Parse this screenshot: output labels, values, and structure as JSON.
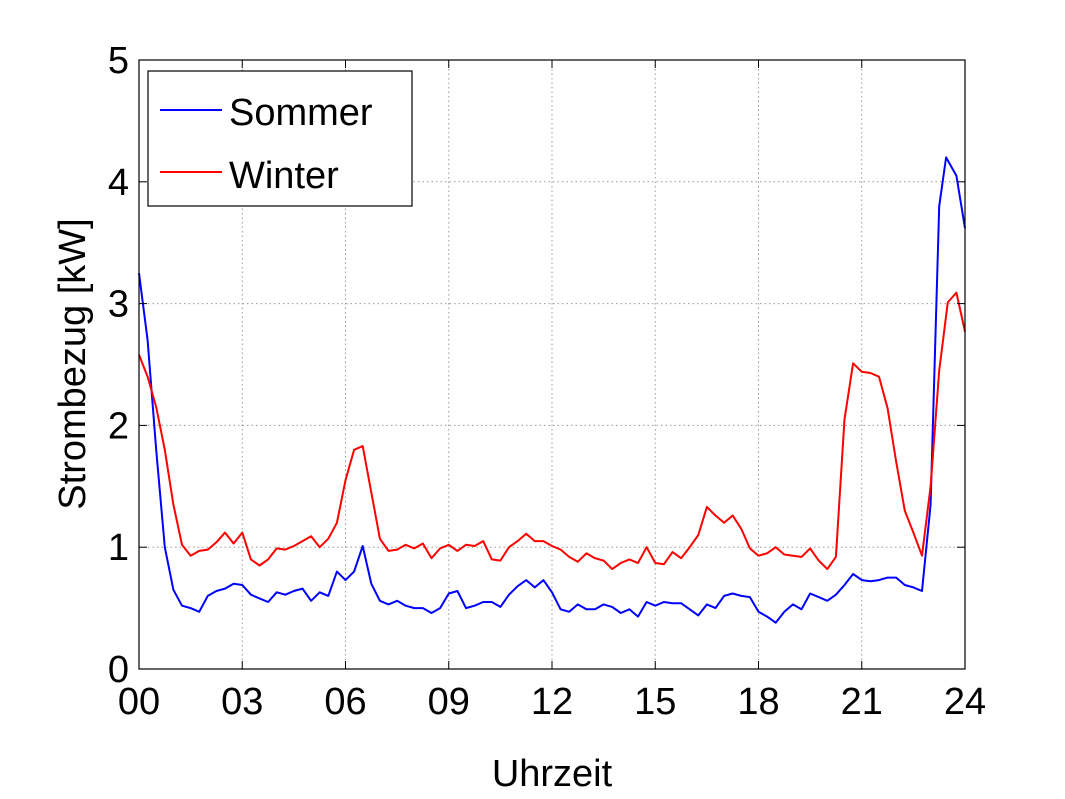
{
  "chart_data": {
    "type": "line",
    "xlabel": "Uhrzeit",
    "ylabel": "Strombezug [kW]",
    "xlim": [
      0,
      24
    ],
    "ylim": [
      0,
      5
    ],
    "x_ticks": [
      0,
      3,
      6,
      9,
      12,
      15,
      18,
      21,
      24
    ],
    "x_tick_labels": [
      "00",
      "03",
      "06",
      "09",
      "12",
      "15",
      "18",
      "21",
      "24"
    ],
    "y_ticks": [
      0,
      1,
      2,
      3,
      4,
      5
    ],
    "y_tick_labels": [
      "0",
      "1",
      "2",
      "3",
      "4",
      "5"
    ],
    "grid": true,
    "legend_position": "top-left",
    "series": [
      {
        "name": "Sommer",
        "color": "#0000ff",
        "points": [
          [
            0.0,
            3.25
          ],
          [
            0.25,
            2.7
          ],
          [
            0.5,
            1.8
          ],
          [
            0.75,
            1.0
          ],
          [
            1.0,
            0.65
          ],
          [
            1.25,
            0.52
          ],
          [
            1.5,
            0.5
          ],
          [
            1.75,
            0.47
          ],
          [
            2.0,
            0.6
          ],
          [
            2.25,
            0.64
          ],
          [
            2.5,
            0.66
          ],
          [
            2.75,
            0.7
          ],
          [
            3.0,
            0.69
          ],
          [
            3.25,
            0.61
          ],
          [
            3.5,
            0.58
          ],
          [
            3.75,
            0.55
          ],
          [
            4.0,
            0.63
          ],
          [
            4.25,
            0.61
          ],
          [
            4.5,
            0.64
          ],
          [
            4.75,
            0.66
          ],
          [
            5.0,
            0.56
          ],
          [
            5.25,
            0.63
          ],
          [
            5.5,
            0.6
          ],
          [
            5.75,
            0.8
          ],
          [
            6.0,
            0.73
          ],
          [
            6.25,
            0.8
          ],
          [
            6.5,
            1.01
          ],
          [
            6.75,
            0.7
          ],
          [
            7.0,
            0.56
          ],
          [
            7.25,
            0.53
          ],
          [
            7.5,
            0.56
          ],
          [
            7.75,
            0.52
          ],
          [
            8.0,
            0.5
          ],
          [
            8.25,
            0.5
          ],
          [
            8.5,
            0.46
          ],
          [
            8.75,
            0.5
          ],
          [
            9.0,
            0.62
          ],
          [
            9.25,
            0.64
          ],
          [
            9.5,
            0.5
          ],
          [
            9.75,
            0.52
          ],
          [
            10.0,
            0.55
          ],
          [
            10.25,
            0.55
          ],
          [
            10.5,
            0.51
          ],
          [
            10.75,
            0.61
          ],
          [
            11.0,
            0.68
          ],
          [
            11.25,
            0.73
          ],
          [
            11.5,
            0.67
          ],
          [
            11.75,
            0.73
          ],
          [
            12.0,
            0.63
          ],
          [
            12.25,
            0.49
          ],
          [
            12.5,
            0.47
          ],
          [
            12.75,
            0.53
          ],
          [
            13.0,
            0.49
          ],
          [
            13.25,
            0.49
          ],
          [
            13.5,
            0.53
          ],
          [
            13.75,
            0.51
          ],
          [
            14.0,
            0.46
          ],
          [
            14.25,
            0.49
          ],
          [
            14.5,
            0.43
          ],
          [
            14.75,
            0.55
          ],
          [
            15.0,
            0.52
          ],
          [
            15.25,
            0.55
          ],
          [
            15.5,
            0.54
          ],
          [
            15.75,
            0.54
          ],
          [
            16.0,
            0.49
          ],
          [
            16.25,
            0.44
          ],
          [
            16.5,
            0.53
          ],
          [
            16.75,
            0.5
          ],
          [
            17.0,
            0.6
          ],
          [
            17.25,
            0.62
          ],
          [
            17.5,
            0.6
          ],
          [
            17.75,
            0.59
          ],
          [
            18.0,
            0.47
          ],
          [
            18.25,
            0.43
          ],
          [
            18.5,
            0.38
          ],
          [
            18.75,
            0.47
          ],
          [
            19.0,
            0.53
          ],
          [
            19.25,
            0.49
          ],
          [
            19.5,
            0.62
          ],
          [
            19.75,
            0.59
          ],
          [
            20.0,
            0.56
          ],
          [
            20.25,
            0.61
          ],
          [
            20.5,
            0.69
          ],
          [
            20.75,
            0.78
          ],
          [
            21.0,
            0.73
          ],
          [
            21.25,
            0.72
          ],
          [
            21.5,
            0.73
          ],
          [
            21.75,
            0.75
          ],
          [
            22.0,
            0.75
          ],
          [
            22.25,
            0.69
          ],
          [
            22.5,
            0.67
          ],
          [
            22.75,
            0.64
          ],
          [
            23.0,
            1.35
          ],
          [
            23.25,
            3.8
          ],
          [
            23.45,
            4.2
          ],
          [
            23.75,
            4.05
          ],
          [
            24.0,
            3.62
          ]
        ]
      },
      {
        "name": "Winter",
        "color": "#ff0000",
        "points": [
          [
            0.0,
            2.58
          ],
          [
            0.25,
            2.4
          ],
          [
            0.5,
            2.15
          ],
          [
            0.75,
            1.8
          ],
          [
            1.0,
            1.35
          ],
          [
            1.25,
            1.02
          ],
          [
            1.5,
            0.93
          ],
          [
            1.75,
            0.97
          ],
          [
            2.0,
            0.98
          ],
          [
            2.25,
            1.04
          ],
          [
            2.5,
            1.12
          ],
          [
            2.75,
            1.03
          ],
          [
            3.0,
            1.12
          ],
          [
            3.25,
            0.9
          ],
          [
            3.5,
            0.85
          ],
          [
            3.75,
            0.9
          ],
          [
            4.0,
            0.99
          ],
          [
            4.25,
            0.98
          ],
          [
            4.5,
            1.01
          ],
          [
            4.75,
            1.05
          ],
          [
            5.0,
            1.09
          ],
          [
            5.25,
            1.0
          ],
          [
            5.5,
            1.07
          ],
          [
            5.75,
            1.2
          ],
          [
            6.0,
            1.55
          ],
          [
            6.25,
            1.8
          ],
          [
            6.5,
            1.83
          ],
          [
            6.75,
            1.45
          ],
          [
            7.0,
            1.07
          ],
          [
            7.25,
            0.97
          ],
          [
            7.5,
            0.98
          ],
          [
            7.75,
            1.02
          ],
          [
            8.0,
            0.99
          ],
          [
            8.25,
            1.03
          ],
          [
            8.5,
            0.91
          ],
          [
            8.75,
            0.99
          ],
          [
            9.0,
            1.02
          ],
          [
            9.25,
            0.97
          ],
          [
            9.5,
            1.02
          ],
          [
            9.75,
            1.01
          ],
          [
            10.0,
            1.05
          ],
          [
            10.25,
            0.9
          ],
          [
            10.5,
            0.89
          ],
          [
            10.75,
            1.0
          ],
          [
            11.0,
            1.05
          ],
          [
            11.25,
            1.11
          ],
          [
            11.5,
            1.05
          ],
          [
            11.75,
            1.05
          ],
          [
            12.0,
            1.01
          ],
          [
            12.25,
            0.98
          ],
          [
            12.5,
            0.92
          ],
          [
            12.75,
            0.88
          ],
          [
            13.0,
            0.95
          ],
          [
            13.25,
            0.91
          ],
          [
            13.5,
            0.89
          ],
          [
            13.75,
            0.82
          ],
          [
            14.0,
            0.87
          ],
          [
            14.25,
            0.9
          ],
          [
            14.5,
            0.87
          ],
          [
            14.75,
            1.0
          ],
          [
            15.0,
            0.87
          ],
          [
            15.25,
            0.86
          ],
          [
            15.5,
            0.96
          ],
          [
            15.75,
            0.91
          ],
          [
            16.0,
            1.0
          ],
          [
            16.25,
            1.1
          ],
          [
            16.5,
            1.33
          ],
          [
            16.75,
            1.26
          ],
          [
            17.0,
            1.2
          ],
          [
            17.25,
            1.26
          ],
          [
            17.5,
            1.15
          ],
          [
            17.75,
            0.99
          ],
          [
            18.0,
            0.93
          ],
          [
            18.25,
            0.95
          ],
          [
            18.5,
            1.0
          ],
          [
            18.75,
            0.94
          ],
          [
            19.0,
            0.93
          ],
          [
            19.25,
            0.92
          ],
          [
            19.5,
            0.99
          ],
          [
            19.75,
            0.89
          ],
          [
            20.0,
            0.82
          ],
          [
            20.25,
            0.92
          ],
          [
            20.5,
            2.05
          ],
          [
            20.75,
            2.51
          ],
          [
            21.0,
            2.44
          ],
          [
            21.25,
            2.43
          ],
          [
            21.5,
            2.4
          ],
          [
            21.75,
            2.14
          ],
          [
            22.0,
            1.7
          ],
          [
            22.25,
            1.3
          ],
          [
            22.5,
            1.12
          ],
          [
            22.75,
            0.93
          ],
          [
            23.0,
            1.5
          ],
          [
            23.25,
            2.45
          ],
          [
            23.5,
            3.01
          ],
          [
            23.75,
            3.09
          ],
          [
            24.0,
            2.77
          ]
        ]
      }
    ]
  }
}
